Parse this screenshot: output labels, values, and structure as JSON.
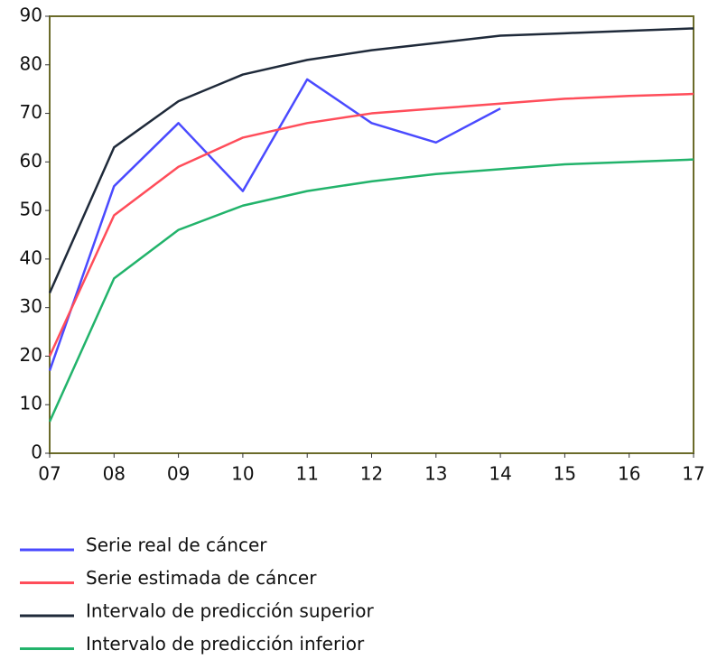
{
  "chart_data": {
    "type": "line",
    "categories": [
      "07",
      "08",
      "09",
      "10",
      "11",
      "12",
      "13",
      "14",
      "15",
      "16",
      "17"
    ],
    "series": [
      {
        "name": "Serie real de cáncer",
        "color": "#4a4aff",
        "values": [
          17,
          55,
          68,
          54,
          77,
          68,
          64,
          71,
          null,
          null,
          null
        ]
      },
      {
        "name": "Serie estimada de cáncer",
        "color": "#ff4d5a",
        "values": [
          20,
          49,
          59,
          65,
          68,
          70,
          71,
          72,
          73,
          73.6,
          74
        ]
      },
      {
        "name": "Intervalo de predicción superior",
        "color": "#1f2a3a",
        "values": [
          33,
          63,
          72.5,
          78,
          81,
          83,
          84.5,
          86,
          86.5,
          87,
          87.5
        ]
      },
      {
        "name": "Intervalo de predicción inferior",
        "color": "#22b36b",
        "values": [
          6.5,
          36,
          46,
          51,
          54,
          56,
          57.5,
          58.5,
          59.5,
          60,
          60.5
        ]
      }
    ],
    "ylim": [
      0,
      90
    ],
    "yticks": [
      0,
      10,
      20,
      30,
      40,
      50,
      60,
      70,
      80,
      90
    ],
    "grid": false,
    "legend": "bottom"
  }
}
